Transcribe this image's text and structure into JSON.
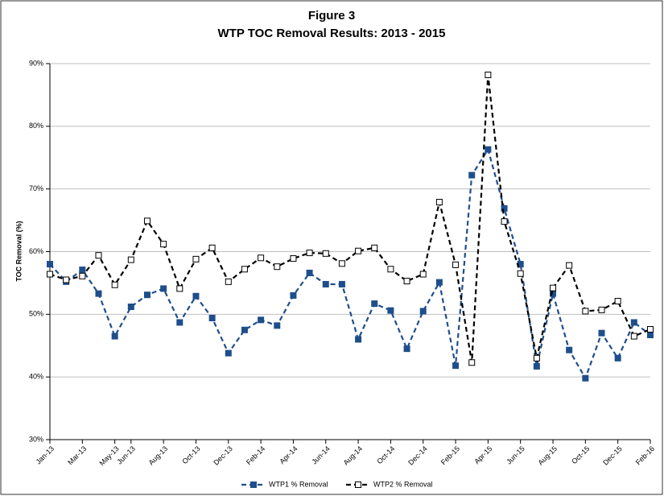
{
  "chart_data": {
    "type": "line",
    "title": "Figure 3",
    "subtitle": "WTP TOC Removal Results: 2013 - 2015",
    "y_label": "TOC Removal (%)",
    "categories": [
      "Jan-13",
      null,
      "Mar-13",
      null,
      "May-13",
      "Jun-13",
      null,
      "Aug-13",
      null,
      "Oct-13",
      null,
      "Dec-13",
      null,
      "Feb-14",
      null,
      "Apr-14",
      null,
      "Jun-14",
      null,
      "Aug-14",
      null,
      "Oct-14",
      null,
      "Dec-14",
      null,
      "Feb-15",
      null,
      "Apr-15",
      null,
      "Jun-15",
      null,
      "Aug-15",
      null,
      "Oct-15",
      null,
      "Dec-15",
      null,
      "Feb-16"
    ],
    "series": [
      {
        "name": "WTP1 % Removal",
        "color": "#1f4e8c",
        "marker": "filled",
        "values": [
          58.0,
          55.2,
          57.1,
          53.3,
          46.5,
          51.2,
          53.1,
          54.1,
          48.7,
          52.9,
          49.4,
          43.8,
          47.5,
          49.1,
          48.2,
          53.0,
          56.6,
          54.8,
          54.8,
          46.0,
          51.7,
          50.6,
          44.5,
          50.5,
          55.1,
          41.8,
          72.2,
          76.3,
          66.9,
          58.0,
          41.7,
          53.3,
          44.3,
          39.8,
          47.0,
          43.0,
          48.7,
          46.7
        ]
      },
      {
        "name": "WTP2 % Removal",
        "color": "#000000",
        "marker": "open",
        "values": [
          56.4,
          55.5,
          56.1,
          59.4,
          54.7,
          58.7,
          64.9,
          61.2,
          54.1,
          58.8,
          60.6,
          55.2,
          57.2,
          59.0,
          57.6,
          58.9,
          59.8,
          59.7,
          58.1,
          60.1,
          60.6,
          57.2,
          55.3,
          56.4,
          67.9,
          57.9,
          42.3,
          88.2,
          64.8,
          56.5,
          43.0,
          54.2,
          57.8,
          50.5,
          50.7,
          52.1,
          46.5,
          47.6
        ]
      }
    ],
    "ylim": [
      30,
      90
    ],
    "yticks": [
      {
        "value": 30,
        "label": "30%"
      },
      {
        "value": 40,
        "label": "40%"
      },
      {
        "value": 50,
        "label": "50%"
      },
      {
        "value": 60,
        "label": "60%"
      },
      {
        "value": 70,
        "label": "70%"
      },
      {
        "value": 80,
        "label": "80%"
      },
      {
        "value": 90,
        "label": "90%"
      }
    ],
    "grid": true,
    "legend": "bottom"
  }
}
